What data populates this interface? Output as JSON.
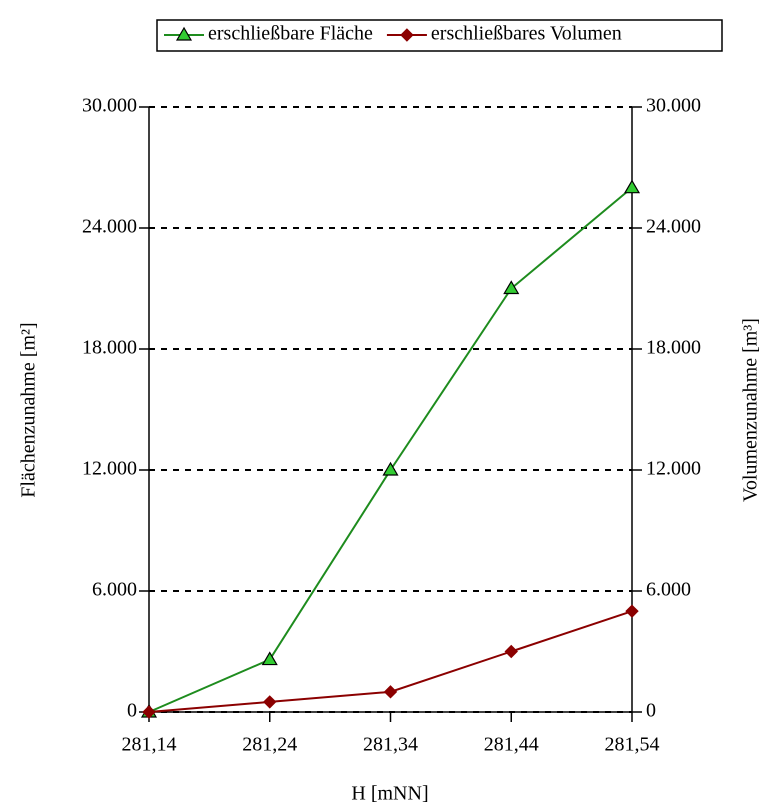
{
  "chart_data": {
    "type": "line",
    "categories": [
      "281,14",
      "281,24",
      "281,34",
      "281,44",
      "281,54"
    ],
    "x_label": "H [mNN]",
    "y_label": "Flächenzunahme [m²]",
    "y2_label": "Volumenzunahme [m³]",
    "series": [
      {
        "name": "erschließbare Fläche",
        "color": "#1e8c1e",
        "marker_color": "#33cc33",
        "marker": "triangle",
        "values": [
          0,
          2600,
          12000,
          21000,
          26000
        ]
      },
      {
        "name": "erschließbares Volumen",
        "color": "#8b0000",
        "marker_color": "#8b0000",
        "marker": "diamond",
        "axis": "y2",
        "values": [
          0,
          500,
          1000,
          3000,
          5000
        ]
      }
    ],
    "ylim": [
      0,
      30000
    ],
    "yticks": [
      0,
      {
        "value": 6000,
        "label": "6.000"
      },
      {
        "value": 12000,
        "label": "12.000"
      },
      {
        "value": 18000,
        "label": "18.000"
      },
      {
        "value": 24000,
        "label": "24.000"
      },
      {
        "value": 30000,
        "label": "30.000"
      }
    ],
    "y2lim": [
      0,
      30000
    ],
    "y2ticks": [
      0,
      {
        "value": 6000,
        "label": "6.000"
      },
      {
        "value": 12000,
        "label": "12.000"
      },
      {
        "value": 18000,
        "label": "18.000"
      },
      {
        "value": 24000,
        "label": "24.000"
      },
      {
        "value": 30000,
        "label": "30.000"
      }
    ],
    "grid": true,
    "legend": "top"
  }
}
